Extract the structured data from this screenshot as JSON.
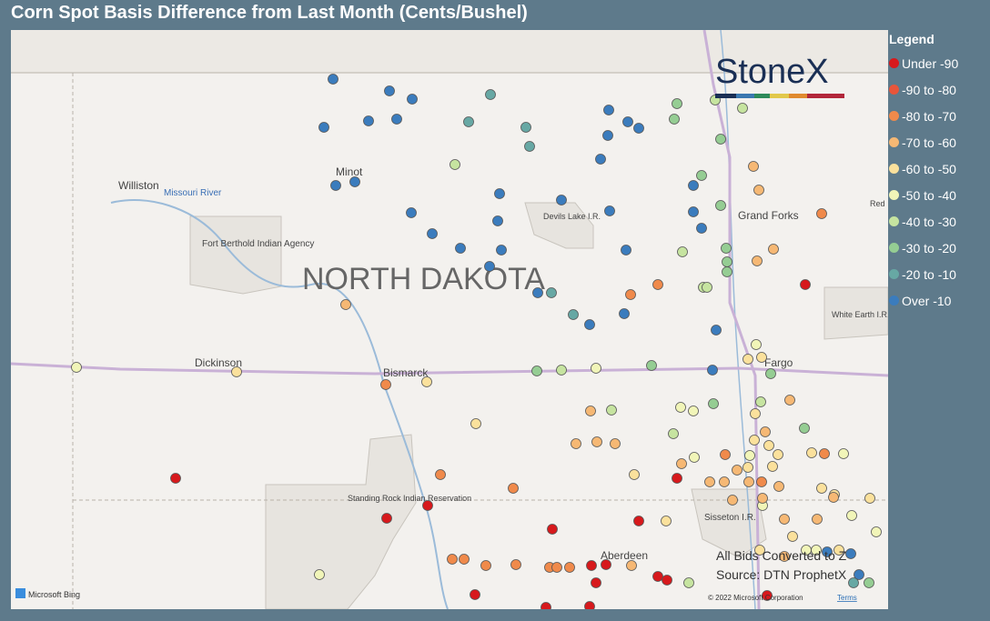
{
  "header": {
    "title": "Corn Spot Basis Difference from Last Month (Cents/Bushel)"
  },
  "legend": {
    "title": "Legend",
    "items": [
      {
        "label": "Under -90",
        "color": "#d7191c"
      },
      {
        "label": "-90 to -80",
        "color": "#e8553a"
      },
      {
        "label": "-80 to -70",
        "color": "#f08a4b"
      },
      {
        "label": "-70 to -60",
        "color": "#f6b874"
      },
      {
        "label": "-60 to -50",
        "color": "#fbe19c"
      },
      {
        "label": "-50 to -40",
        "color": "#f1f5b8"
      },
      {
        "label": "-40 to -30",
        "color": "#c6e4a0"
      },
      {
        "label": "-30 to -20",
        "color": "#95cd93"
      },
      {
        "label": "-20 to -10",
        "color": "#67a8a4"
      },
      {
        "label": "Over -10",
        "color": "#3b7cbd"
      }
    ]
  },
  "map": {
    "region": "NORTH DAKOTA",
    "places": [
      "Williston",
      "Missouri River",
      "Minot",
      "Fort Berthold Indian Agency",
      "Devils Lake I.R.",
      "Grand Forks",
      "White Earth I.R.",
      "Red",
      "Dickinson",
      "Bismarck",
      "Fargo",
      "Standing Rock Indian Reservation",
      "Sisseton I.R.",
      "Aberdeen"
    ]
  },
  "brand": "StoneX",
  "notes": [
    "All Bids Converted to Z",
    "Source: DTN ProphetX"
  ],
  "attribution": {
    "provider": "Microsoft Bing",
    "copyright": "© 2022 Microsoft Corporation",
    "terms": "Terms"
  }
}
